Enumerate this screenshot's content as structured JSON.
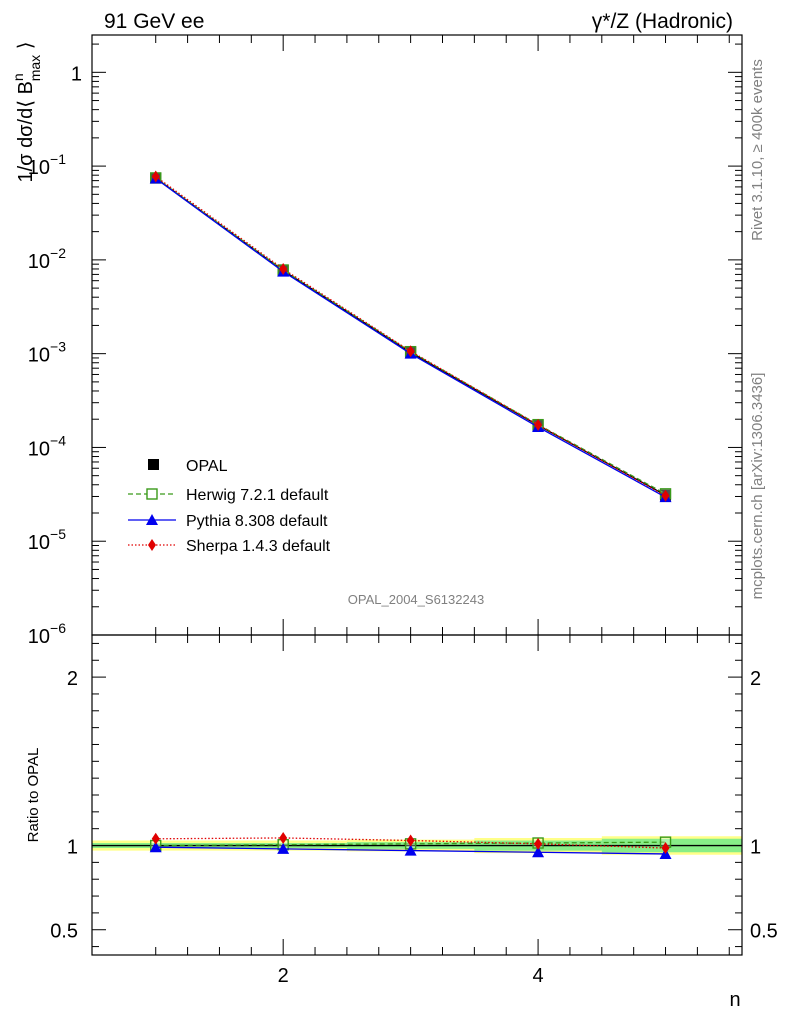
{
  "header": {
    "left_title": "91 GeV ee",
    "right_title": "γ*/Z (Hadronic)"
  },
  "side_labels": {
    "rivet": "Rivet 3.1.10, ≥ 400k events",
    "mcplots": "mcplots.cern.ch [arXiv:1306.3436]"
  },
  "watermark": "OPAL_2004_S6132243",
  "colors": {
    "opal": "#000000",
    "herwig": "#3a9a1a",
    "pythia": "#0000ee",
    "sherpa": "#e00000",
    "band_outer": "#ffff88",
    "band_inner": "#88ee88"
  },
  "chart_data": [
    {
      "type": "line",
      "panel": "main",
      "ylabel": "1/σ dσ/d⟨ B^n_max ⟩",
      "yscale": "log",
      "ylim": [
        1e-06,
        2.5
      ],
      "xlim": [
        0.5,
        5.6
      ],
      "y_tick_labels": [
        "10^-6",
        "10^-5",
        "10^-4",
        "10^-3",
        "10^-2",
        "10^-1",
        "1"
      ],
      "x": [
        1,
        2,
        3,
        4,
        5
      ],
      "series": [
        {
          "name": "OPAL",
          "values": [
            0.0745,
            0.0077,
            0.00103,
            0.000172,
            3.1e-05
          ]
        },
        {
          "name": "Herwig 7.2.1 default",
          "values": [
            0.0748,
            0.0078,
            0.00105,
            0.000175,
            3.2e-05
          ]
        },
        {
          "name": "Pythia 8.308 default",
          "values": [
            0.0738,
            0.0075,
            0.001,
            0.000165,
            2.95e-05
          ]
        },
        {
          "name": "Sherpa 1.4.3 default",
          "values": [
            0.0775,
            0.008,
            0.00106,
            0.000174,
            3.05e-05
          ]
        }
      ],
      "legend": [
        {
          "label": "OPAL",
          "style": "square-marker"
        },
        {
          "label": "Herwig 7.2.1 default",
          "style": "dashed-open-square"
        },
        {
          "label": "Pythia 8.308 default",
          "style": "solid-triangle"
        },
        {
          "label": "Sherpa 1.4.3 default",
          "style": "dotted-diamond"
        }
      ]
    },
    {
      "type": "line",
      "panel": "ratio",
      "ylabel": "Ratio to OPAL",
      "xlabel": "n",
      "ylim": [
        0.35,
        2.25
      ],
      "y_tick_labels": [
        "0.5",
        "1",
        "2"
      ],
      "x_tick_labels": [
        "2",
        "4"
      ],
      "x": [
        1,
        2,
        3,
        4,
        5
      ],
      "band_outer": [
        0.03,
        0.03,
        0.035,
        0.045,
        0.055
      ],
      "band_inner": [
        0.015,
        0.015,
        0.02,
        0.03,
        0.04
      ],
      "series": [
        {
          "name": "Herwig 7.2.1 default",
          "values": [
            1.0,
            1.005,
            1.01,
            1.015,
            1.02
          ]
        },
        {
          "name": "Pythia 8.308 default",
          "values": [
            0.99,
            0.98,
            0.97,
            0.96,
            0.95
          ]
        },
        {
          "name": "Sherpa 1.4.3 default",
          "values": [
            1.04,
            1.045,
            1.03,
            1.01,
            0.985
          ]
        }
      ]
    }
  ]
}
